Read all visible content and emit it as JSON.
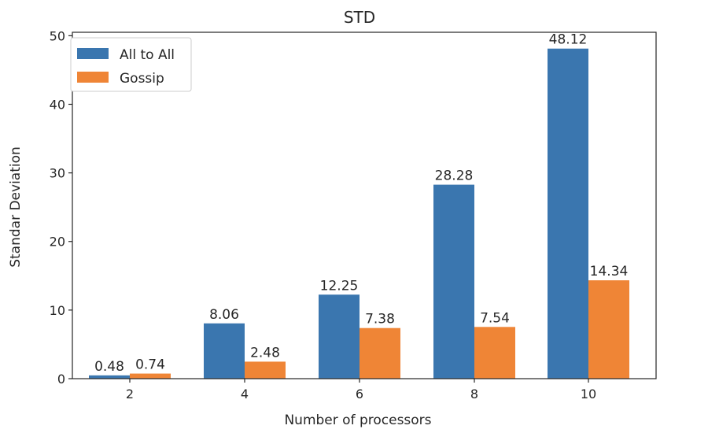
{
  "chart_data": {
    "type": "bar",
    "title": "STD",
    "xlabel": "Number of processors",
    "ylabel": "Standar Deviation",
    "categories": [
      "2",
      "4",
      "6",
      "8",
      "10"
    ],
    "series": [
      {
        "name": "All to All",
        "values": [
          0.48,
          8.06,
          12.25,
          28.28,
          48.12
        ],
        "labels": [
          "0.48",
          "8.06",
          "12.25",
          "28.28",
          "48.12"
        ],
        "color": "#3a76af"
      },
      {
        "name": "Gossip",
        "values": [
          0.74,
          2.48,
          7.38,
          7.54,
          14.34
        ],
        "labels": [
          "0.74",
          "2.48",
          "7.38",
          "7.54",
          "14.34"
        ],
        "color": "#ef8536"
      }
    ],
    "ylim": [
      0,
      50.5
    ],
    "yticks": [
      "0",
      "10",
      "20",
      "30",
      "40",
      "50"
    ],
    "grid": false,
    "legend": "top-left"
  }
}
